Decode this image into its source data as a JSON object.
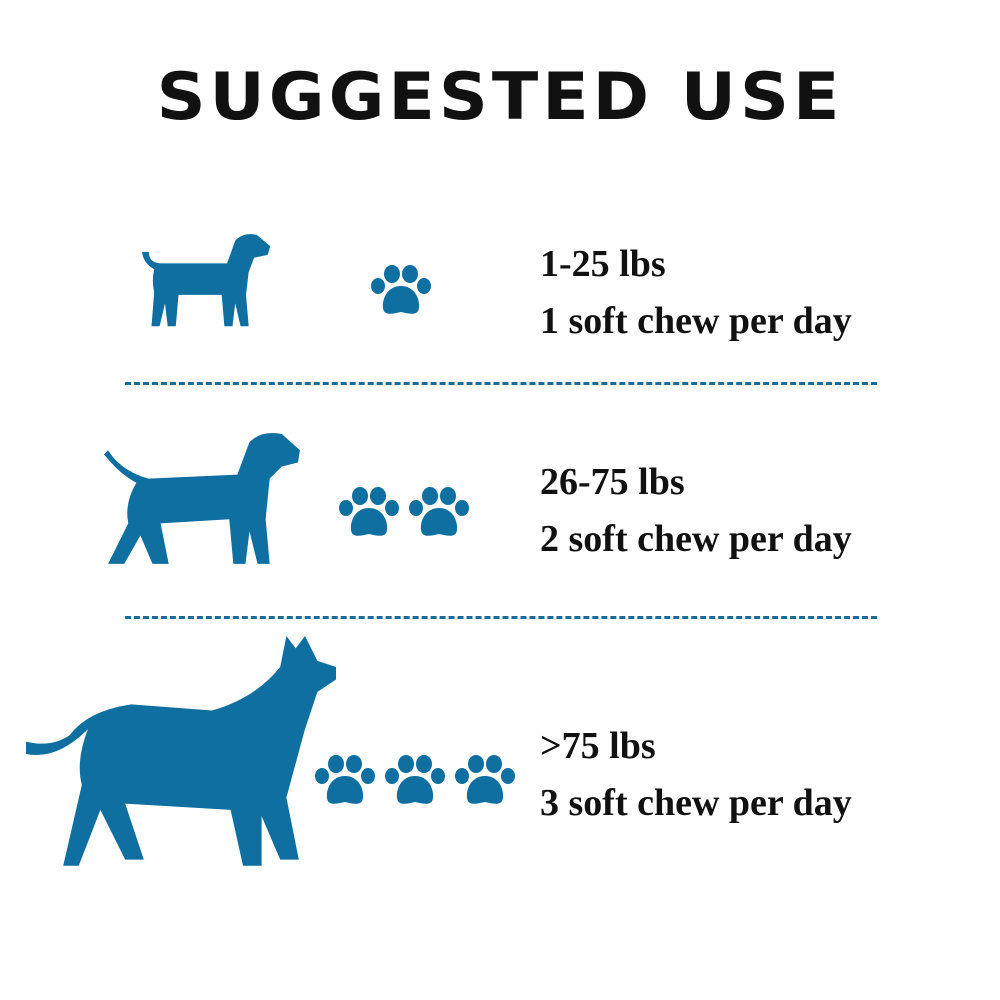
{
  "title": "SUGGESTED USE",
  "accent_color": "#0e6fa0",
  "rows": [
    {
      "weight": "1-25  lbs",
      "dose": "1 soft chew per day",
      "paw_count": 1,
      "dog_icon": "small-dog-icon"
    },
    {
      "weight": "26-75  lbs",
      "dose": "2 soft chew per day",
      "paw_count": 2,
      "dog_icon": "medium-dog-icon"
    },
    {
      "weight": ">75  lbs",
      "dose": "3 soft chew per day",
      "paw_count": 3,
      "dog_icon": "large-dog-icon"
    }
  ]
}
